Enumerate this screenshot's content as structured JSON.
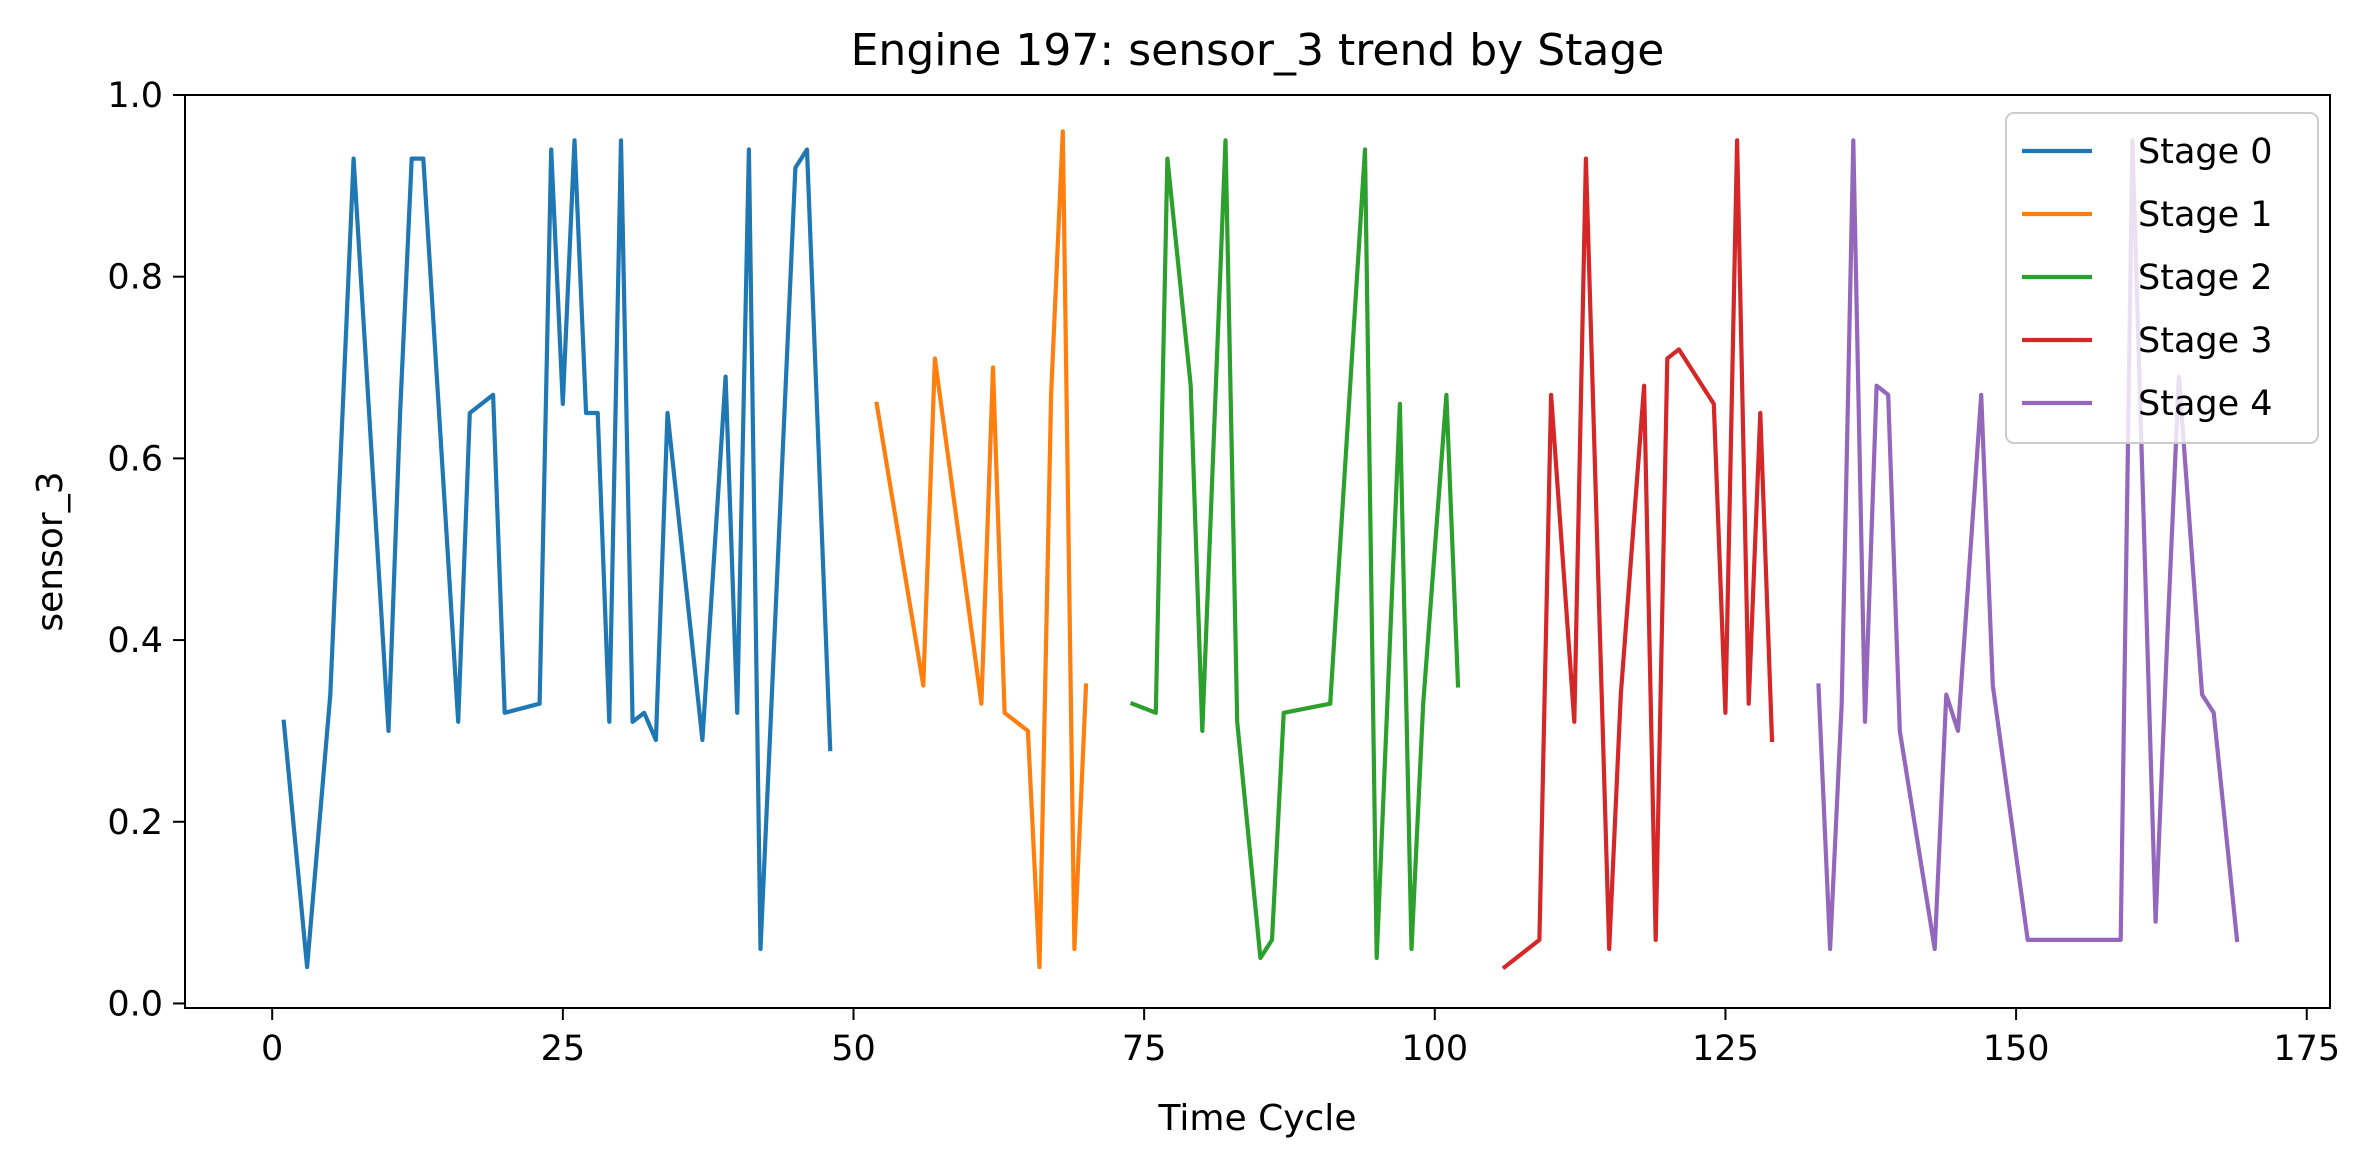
{
  "chart_data": {
    "type": "line",
    "title": "Engine 197: sensor_3 trend by Stage",
    "xlabel": "Time Cycle",
    "ylabel": "sensor_3",
    "xlim": [
      -7.5,
      177
    ],
    "ylim": [
      -0.005,
      1.0
    ],
    "x_ticks": [
      0,
      25,
      50,
      75,
      100,
      125,
      150,
      175
    ],
    "y_ticks": [
      0.0,
      0.2,
      0.4,
      0.6,
      0.8,
      1.0
    ],
    "x_tick_labels": [
      "0",
      "25",
      "50",
      "75",
      "100",
      "125",
      "150",
      "175"
    ],
    "y_tick_labels": [
      "0.0",
      "0.2",
      "0.4",
      "0.6",
      "0.8",
      "1.0"
    ],
    "grid": false,
    "legend_position": "top-right",
    "series": [
      {
        "name": "Stage 0",
        "color": "#1f77b4",
        "x": [
          1,
          3,
          5,
          7,
          10,
          11,
          12,
          13,
          16,
          17,
          19,
          20,
          23,
          24,
          25,
          26,
          27,
          28,
          29,
          30,
          31,
          32,
          33,
          34,
          37,
          39,
          40,
          41,
          42,
          45,
          46,
          48
        ],
        "y": [
          0.31,
          0.04,
          0.34,
          0.93,
          0.3,
          0.65,
          0.93,
          0.93,
          0.31,
          0.65,
          0.67,
          0.32,
          0.33,
          0.94,
          0.66,
          0.95,
          0.65,
          0.65,
          0.31,
          0.95,
          0.31,
          0.32,
          0.29,
          0.65,
          0.29,
          0.69,
          0.32,
          0.94,
          0.06,
          0.92,
          0.94,
          0.28
        ]
      },
      {
        "name": "Stage 1",
        "color": "#ff7f0e",
        "x": [
          52,
          56,
          57,
          61,
          62,
          63,
          65,
          66,
          67,
          68,
          69,
          70
        ],
        "y": [
          0.66,
          0.35,
          0.71,
          0.33,
          0.7,
          0.32,
          0.3,
          0.04,
          0.67,
          0.96,
          0.06,
          0.35
        ]
      },
      {
        "name": "Stage 2",
        "color": "#2ca02c",
        "x": [
          74,
          76,
          77,
          79,
          80,
          82,
          83,
          85,
          86,
          87,
          91,
          94,
          95,
          97,
          98,
          99,
          101,
          102
        ],
        "y": [
          0.33,
          0.32,
          0.93,
          0.68,
          0.3,
          0.95,
          0.31,
          0.05,
          0.07,
          0.32,
          0.33,
          0.94,
          0.05,
          0.66,
          0.06,
          0.33,
          0.67,
          0.35
        ]
      },
      {
        "name": "Stage 3",
        "color": "#d62728",
        "x": [
          106,
          109,
          110,
          112,
          113,
          115,
          116,
          118,
          119,
          120,
          121,
          124,
          125,
          126,
          127,
          128,
          129
        ],
        "y": [
          0.04,
          0.07,
          0.67,
          0.31,
          0.93,
          0.06,
          0.34,
          0.68,
          0.07,
          0.71,
          0.72,
          0.66,
          0.32,
          0.95,
          0.33,
          0.65,
          0.29
        ]
      },
      {
        "name": "Stage 4",
        "color": "#9467bd",
        "x": [
          133,
          134,
          135,
          136,
          137,
          138,
          139,
          140,
          143,
          144,
          145,
          147,
          148,
          151,
          157,
          159,
          160,
          162,
          163,
          164,
          166,
          167,
          169
        ],
        "y": [
          0.35,
          0.06,
          0.33,
          0.95,
          0.31,
          0.68,
          0.67,
          0.3,
          0.06,
          0.34,
          0.3,
          0.67,
          0.35,
          0.07,
          0.07,
          0.07,
          0.95,
          0.09,
          0.4,
          0.69,
          0.34,
          0.32,
          0.07
        ]
      }
    ]
  }
}
